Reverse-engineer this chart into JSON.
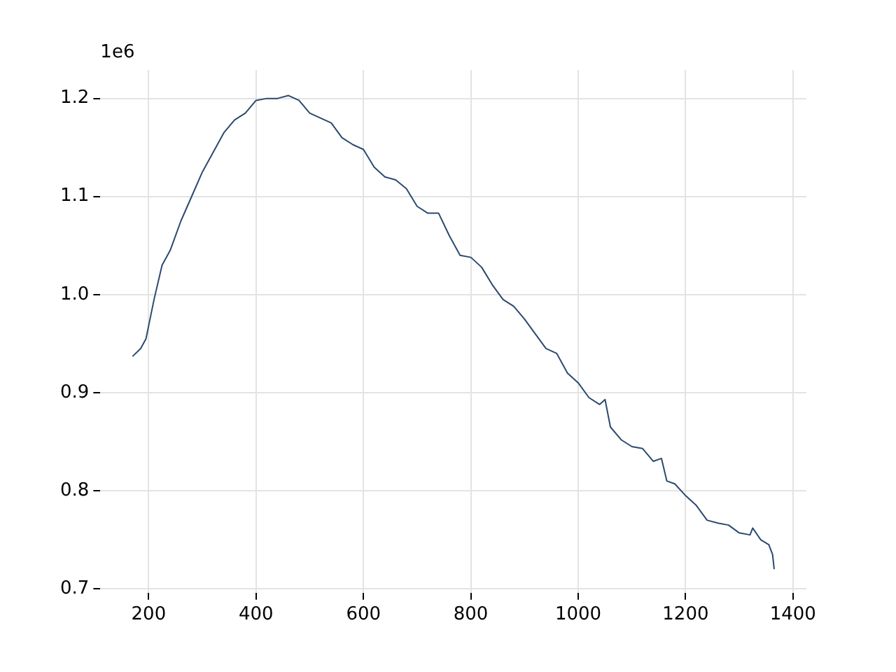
{
  "chart_data": {
    "type": "line",
    "annotations": [
      "1e6"
    ],
    "x": [
      170,
      185,
      195,
      210,
      225,
      240,
      260,
      280,
      300,
      320,
      340,
      360,
      380,
      400,
      420,
      440,
      460,
      480,
      500,
      520,
      540,
      560,
      580,
      600,
      620,
      640,
      660,
      680,
      700,
      720,
      740,
      760,
      780,
      800,
      820,
      840,
      860,
      880,
      900,
      920,
      940,
      960,
      980,
      1000,
      1020,
      1040,
      1050,
      1060,
      1080,
      1100,
      1120,
      1140,
      1155,
      1165,
      1180,
      1200,
      1220,
      1240,
      1260,
      1280,
      1300,
      1320,
      1325,
      1340,
      1355,
      1362,
      1365
    ],
    "series": [
      {
        "color": "#2b4a6f",
        "values": [
          0.937,
          0.945,
          0.955,
          0.995,
          1.03,
          1.045,
          1.075,
          1.1,
          1.125,
          1.145,
          1.165,
          1.178,
          1.185,
          1.198,
          1.2,
          1.2,
          1.203,
          1.198,
          1.185,
          1.18,
          1.175,
          1.16,
          1.153,
          1.148,
          1.13,
          1.12,
          1.117,
          1.108,
          1.09,
          1.083,
          1.083,
          1.06,
          1.04,
          1.038,
          1.028,
          1.01,
          0.995,
          0.988,
          0.975,
          0.96,
          0.945,
          0.94,
          0.92,
          0.91,
          0.895,
          0.888,
          0.893,
          0.865,
          0.852,
          0.845,
          0.843,
          0.83,
          0.833,
          0.81,
          0.807,
          0.795,
          0.785,
          0.77,
          0.767,
          0.765,
          0.757,
          0.755,
          0.762,
          0.75,
          0.745,
          0.735,
          0.72
        ]
      }
    ],
    "xlim": [
      110,
      1425
    ],
    "ylim": [
      0.696,
      1.229
    ],
    "xticks": [
      200,
      400,
      600,
      800,
      1000,
      1200,
      1400
    ],
    "yticks": [
      0.7,
      0.8,
      0.9,
      {
        "value": 1,
        "label": "1.0"
      },
      1.1,
      1.2
    ],
    "grid": true,
    "legend": false,
    "marker": "none",
    "line_style": "solid"
  }
}
